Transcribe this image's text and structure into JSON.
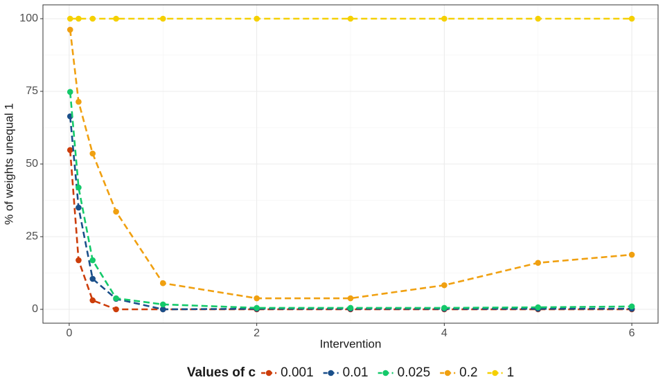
{
  "chart_data": {
    "type": "line",
    "x_label": "Intervention",
    "y_label": "% of weights unequal 1",
    "legend_title": "Values of c",
    "x": [
      0.01,
      0.1,
      0.25,
      0.5,
      1,
      2,
      3,
      4,
      5,
      6
    ],
    "series": [
      {
        "name": "0.001",
        "color": "#cc3d0a",
        "values": [
          54.8,
          16.9,
          3.1,
          0,
          0,
          0,
          0,
          0,
          0,
          0
        ]
      },
      {
        "name": "0.01",
        "color": "#1a4f8a",
        "values": [
          66.4,
          35,
          10.5,
          3.6,
          0,
          0.2,
          0.2,
          0.2,
          0.2,
          0.2
        ]
      },
      {
        "name": "0.025",
        "color": "#14c96a",
        "values": [
          74.8,
          41.9,
          16.9,
          3.8,
          1.7,
          0.5,
          0.5,
          0.5,
          0.7,
          1
        ]
      },
      {
        "name": "0.2",
        "color": "#f0a010",
        "values": [
          96.2,
          71.4,
          53.6,
          33.6,
          9,
          3.8,
          3.8,
          8.3,
          16,
          18.8
        ]
      },
      {
        "name": "1",
        "color": "#f5d000",
        "values": [
          100,
          100,
          100,
          100,
          100,
          100,
          100,
          100,
          100,
          100
        ]
      }
    ],
    "xlim": [
      -0.28,
      6.28
    ],
    "xticks": [
      0,
      2,
      4,
      6
    ],
    "ylim": [
      -4.76,
      104.76
    ],
    "yticks": [
      0,
      25,
      50,
      75,
      100
    ],
    "grid": true,
    "legend_position": "bottom"
  }
}
